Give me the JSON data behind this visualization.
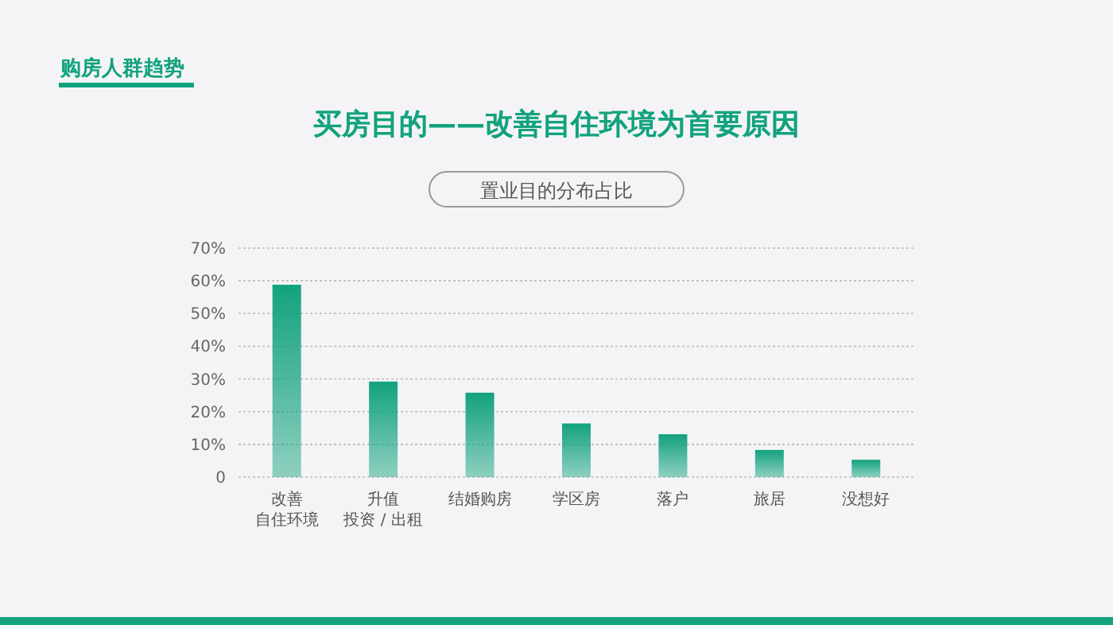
{
  "chart_data": {
    "type": "bar",
    "title": "买房目的——改善自住环境为首要原因",
    "subtitle": "置业目的分布占比",
    "annotations": [
      "购房人群趋势"
    ],
    "categories": [
      "改善自住环境",
      "升值投资 / 出租",
      "结婚购房",
      "学区房",
      "落户",
      "旅居",
      "没想好"
    ],
    "values": [
      58.8,
      29.2,
      25.8,
      16.4,
      13.1,
      8.3,
      5.3
    ],
    "color": "#12a27e",
    "ylim": [
      0,
      70
    ],
    "yticks": [
      {
        "value": 0,
        "label": "0"
      },
      {
        "value": 10,
        "label": "10%"
      },
      {
        "value": 20,
        "label": "20%"
      },
      {
        "value": 30,
        "label": "30%"
      },
      {
        "value": 40,
        "label": "40%"
      },
      {
        "value": 50,
        "label": "50%"
      },
      {
        "value": 60,
        "label": "60%"
      },
      {
        "value": 70,
        "label": "70%"
      }
    ],
    "grid": "y"
  }
}
